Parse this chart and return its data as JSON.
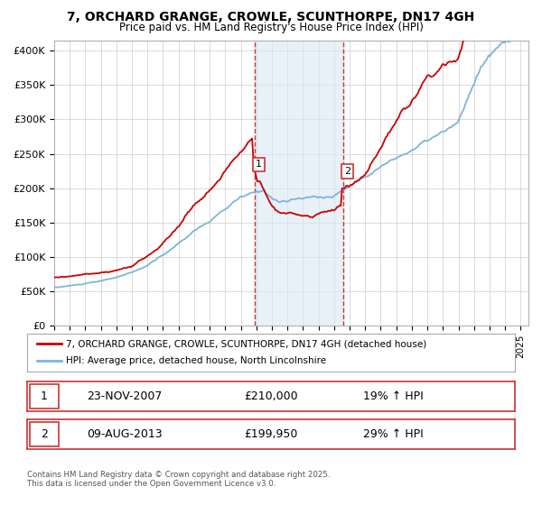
{
  "title": "7, ORCHARD GRANGE, CROWLE, SCUNTHORPE, DN17 4GH",
  "subtitle": "Price paid vs. HM Land Registry's House Price Index (HPI)",
  "ylabel_ticks": [
    "£0",
    "£50K",
    "£100K",
    "£150K",
    "£200K",
    "£250K",
    "£300K",
    "£350K",
    "£400K"
  ],
  "ytick_values": [
    0,
    50000,
    100000,
    150000,
    200000,
    250000,
    300000,
    350000,
    400000
  ],
  "ylim": [
    0,
    415000
  ],
  "xlim_start": 1995.0,
  "xlim_end": 2025.5,
  "xticks": [
    1995,
    1996,
    1997,
    1998,
    1999,
    2000,
    2001,
    2002,
    2003,
    2004,
    2005,
    2006,
    2007,
    2008,
    2009,
    2010,
    2011,
    2012,
    2013,
    2014,
    2015,
    2016,
    2017,
    2018,
    2019,
    2020,
    2021,
    2022,
    2023,
    2024,
    2025
  ],
  "sale1_x": 2007.9,
  "sale1_y": 210000,
  "sale1_label": "1",
  "sale1_date": "23-NOV-2007",
  "sale1_price": "£210,000",
  "sale1_hpi": "19% ↑ HPI",
  "sale2_x": 2013.6,
  "sale2_y": 199950,
  "sale2_label": "2",
  "sale2_date": "09-AUG-2013",
  "sale2_price": "£199,950",
  "sale2_hpi": "29% ↑ HPI",
  "highlight_color": "#dce9f5",
  "highlight_alpha": 0.65,
  "vline_color": "#cc3333",
  "vline_style": "--",
  "property_line_color": "#cc0000",
  "hpi_line_color": "#7fb4d8",
  "legend_label1": "7, ORCHARD GRANGE, CROWLE, SCUNTHORPE, DN17 4GH (detached house)",
  "legend_label2": "HPI: Average price, detached house, North Lincolnshire",
  "footer": "Contains HM Land Registry data © Crown copyright and database right 2025.\nThis data is licensed under the Open Government Licence v3.0.",
  "background_color": "#ffffff",
  "grid_color": "#cccccc"
}
